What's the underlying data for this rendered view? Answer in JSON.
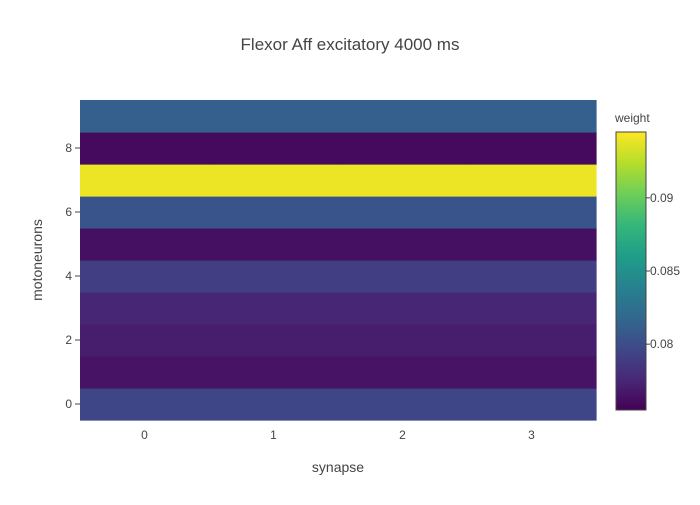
{
  "chart_data": {
    "type": "heatmap",
    "title": "Flexor Aff excitatory 4000 ms",
    "xlabel": "synapse",
    "ylabel": "motoneurons",
    "x_categories": [
      0,
      1,
      2,
      3
    ],
    "y_categories": [
      0,
      1,
      2,
      3,
      4,
      5,
      6,
      7,
      8,
      9
    ],
    "x_ticks": [
      0,
      1,
      2,
      3
    ],
    "y_ticks": [
      0,
      2,
      4,
      6,
      8
    ],
    "z": [
      [
        0.0795,
        0.0795,
        0.0795,
        0.0795
      ],
      [
        0.0765,
        0.0765,
        0.0765,
        0.0765
      ],
      [
        0.077,
        0.077,
        0.077,
        0.077
      ],
      [
        0.0775,
        0.0775,
        0.0775,
        0.0775
      ],
      [
        0.079,
        0.079,
        0.079,
        0.079
      ],
      [
        0.0763,
        0.0763,
        0.0763,
        0.0763
      ],
      [
        0.0805,
        0.0805,
        0.0805,
        0.0805
      ],
      [
        0.094,
        0.094,
        0.094,
        0.094
      ],
      [
        0.076,
        0.076,
        0.076,
        0.076
      ],
      [
        0.0812,
        0.0812,
        0.0812,
        0.0812
      ]
    ],
    "colorscale": "Viridis",
    "zmin": 0.0755,
    "zmax": 0.0945,
    "colorbar": {
      "title": "weight",
      "ticks": [
        0.08,
        0.085,
        0.09
      ],
      "tick_labels": [
        "0.08",
        "0.085",
        "0.09"
      ]
    },
    "grid": false
  }
}
